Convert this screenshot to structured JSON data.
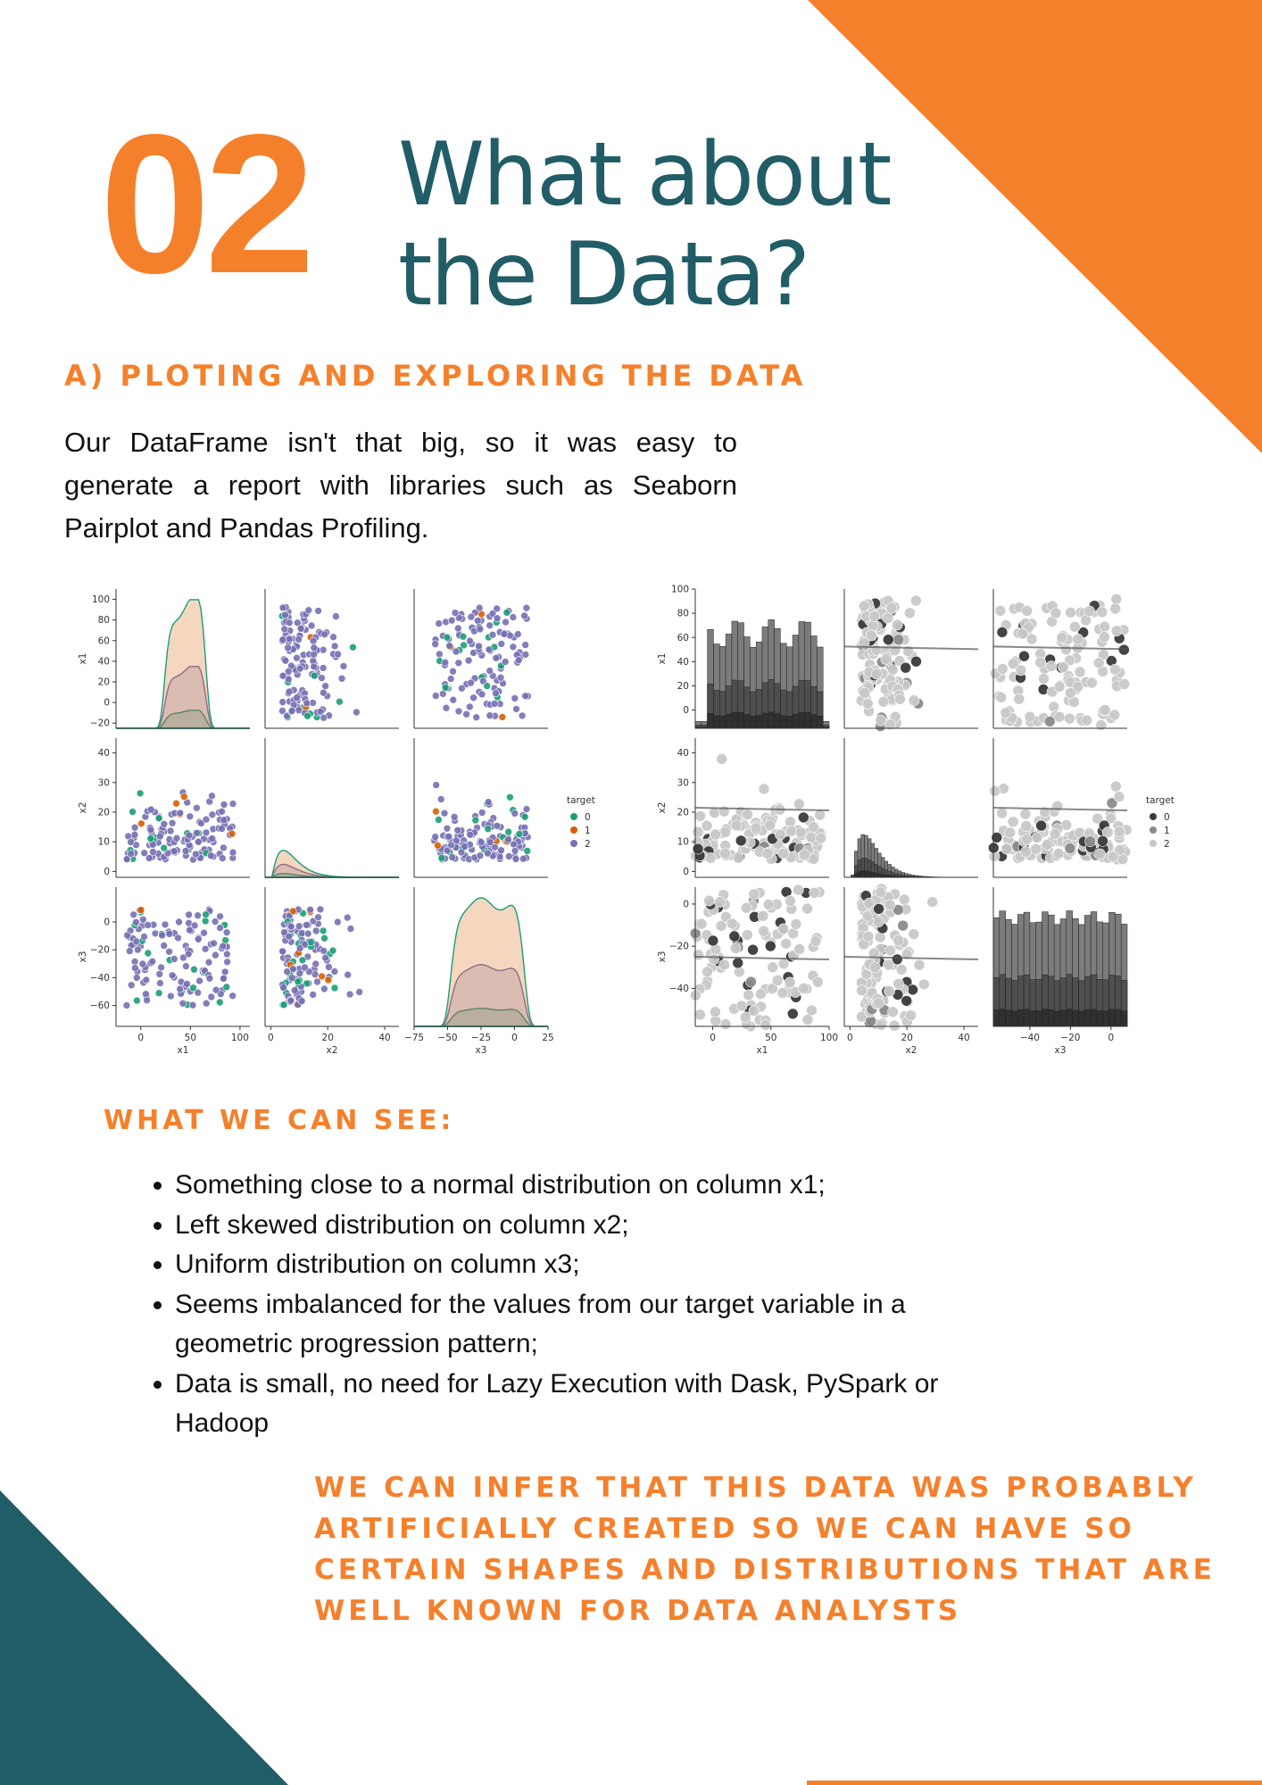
{
  "section_number": "02",
  "title_lines": [
    "What about",
    "the Data?"
  ],
  "subheading": "A) PLOTING AND EXPLORING THE DATA",
  "intro": "Our DataFrame isn't that big, so it was easy to generate a report with libraries such as Seaborn Pairplot and Pandas Profiling.",
  "see_heading": "WHAT WE CAN SEE:",
  "bullets": [
    "Something close to a normal distribution on column x1;",
    "Left skewed distribution on column x2;",
    "Uniform distribution on column x3;",
    "Seems imbalanced for the values from our target variable in a geometric progression pattern;",
    "Data is small, no need for Lazy Execution with Dask, PySpark or Hadoop"
  ],
  "conclusion": "WE CAN INFER THAT THIS DATA WAS PROBABLY ARTIFICIALLY CREATED SO WE CAN HAVE SO CERTAIN SHAPES AND DISTRIBUTIONS THAT ARE WELL KNOWN FOR DATA ANALYSTS",
  "colors": {
    "orange": "#f5802c",
    "teal": "#215d66",
    "t0": "#1b9e77",
    "t1": "#d95f02",
    "t2": "#7570b3",
    "g0": "#3a3a3a",
    "g1": "#8a8a8a",
    "g2": "#c8c8c8"
  },
  "chart_data": [
    {
      "type": "scatter",
      "variables": [
        "x1",
        "x2",
        "x3"
      ],
      "legend": {
        "title": "target",
        "labels": [
          "0",
          "1",
          "2"
        ],
        "position": "right"
      },
      "ranges": {
        "x1": [
          -25,
          110
        ],
        "x2": [
          -2,
          45
        ],
        "x3": [
          -75,
          25
        ]
      },
      "row_ticks": {
        "x1": [
          -20,
          0,
          20,
          40,
          60,
          80,
          100
        ],
        "x2": [
          0,
          10,
          20,
          30,
          40
        ],
        "x3": [
          -60,
          -40,
          -20,
          0
        ]
      },
      "col_ticks": {
        "x1": [
          0,
          50,
          100
        ],
        "x2": [
          0,
          20,
          40
        ],
        "x3": [
          -75,
          -50,
          -25,
          0,
          25
        ]
      },
      "col_tick_labels": {
        "x1": [
          "0",
          "50",
          "100"
        ],
        "x2": [
          "0",
          "20",
          "40"
        ],
        "x3": [
          "−75",
          "−50",
          "−25",
          "0",
          "25"
        ]
      },
      "diag": "kde"
    },
    {
      "type": "scatter",
      "variables": [
        "x1",
        "x2",
        "x3"
      ],
      "legend": {
        "title": "target",
        "labels": [
          "0",
          "1",
          "2"
        ],
        "position": "right"
      },
      "ranges": {
        "x1": [
          -15,
          100
        ],
        "x2": [
          -2,
          45
        ],
        "x3": [
          -58,
          8
        ]
      },
      "row_ticks": {
        "x1": [
          -20,
          0,
          20,
          40,
          60,
          80,
          100
        ],
        "x2": [
          0,
          10,
          20,
          30,
          40
        ],
        "x3": [
          -60,
          -40,
          -20,
          0
        ]
      },
      "col_ticks": {
        "x1": [
          0,
          50,
          100
        ],
        "x2": [
          0,
          20,
          40
        ],
        "x3": [
          -40,
          -20,
          0
        ]
      },
      "col_tick_labels": {
        "x1": [
          "0",
          "50",
          "100"
        ],
        "x2": [
          "0",
          "20",
          "40"
        ],
        "x3": [
          "−40",
          "−20",
          "0"
        ]
      },
      "diag": "hist"
    }
  ]
}
